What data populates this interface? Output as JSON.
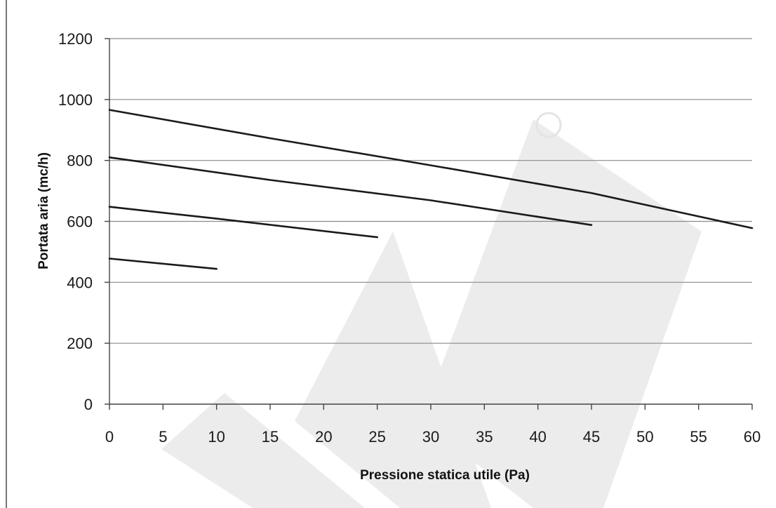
{
  "chart_data": {
    "type": "line",
    "xlabel": "Pressione statica utile (Pa)",
    "ylabel": "Portata aria (mc/h)",
    "xlim": [
      0,
      60
    ],
    "ylim": [
      0,
      1200
    ],
    "x_ticks": [
      0,
      5,
      10,
      15,
      20,
      25,
      30,
      35,
      40,
      45,
      50,
      55,
      60
    ],
    "y_ticks": [
      0,
      200,
      400,
      600,
      800,
      1000,
      1200
    ],
    "grid": "horizontal",
    "legend": "none",
    "series": [
      {
        "x": [
          0,
          10
        ],
        "y": [
          478,
          444
        ]
      },
      {
        "x": [
          0,
          10,
          25
        ],
        "y": [
          648,
          609,
          548
        ]
      },
      {
        "x": [
          0,
          15,
          30,
          45
        ],
        "y": [
          810,
          736,
          669,
          588
        ]
      },
      {
        "x": [
          0,
          15,
          30,
          45,
          60
        ],
        "y": [
          966,
          873,
          784,
          693,
          578
        ]
      }
    ],
    "colors": {
      "line": "#1a1a1a",
      "grid": "#8a8a8a",
      "watermark": "#ececec"
    }
  }
}
